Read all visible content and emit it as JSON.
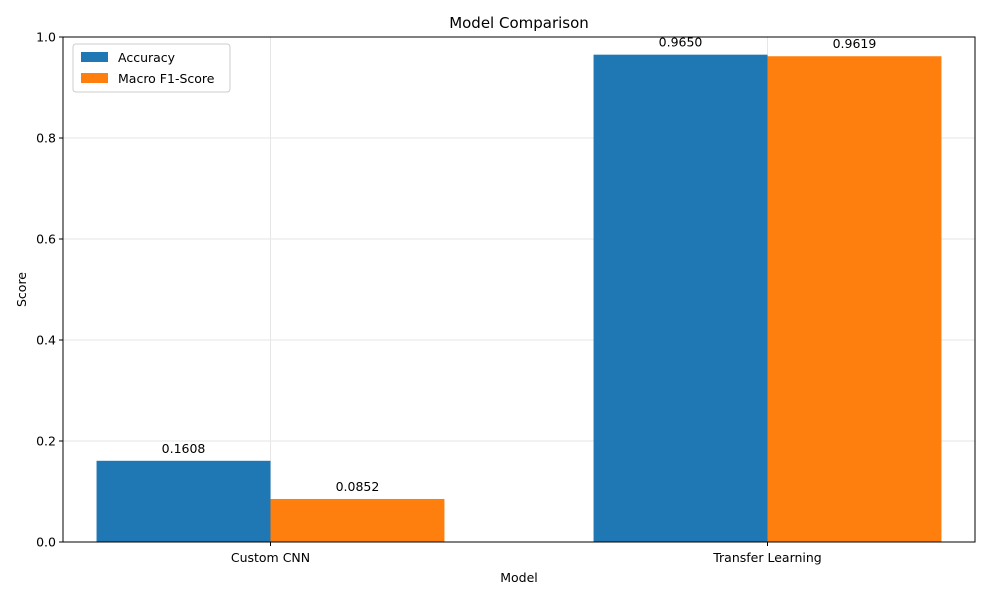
{
  "chart_data": {
    "type": "bar",
    "title": "Model Comparison",
    "xlabel": "Model",
    "ylabel": "Score",
    "categories": [
      "Custom CNN",
      "Transfer Learning"
    ],
    "series": [
      {
        "name": "Accuracy",
        "values": [
          0.1608,
          0.965
        ],
        "color": "#1f77b4"
      },
      {
        "name": "Macro F1-Score",
        "values": [
          0.0852,
          0.9619
        ],
        "color": "#ff7f0e"
      }
    ],
    "value_labels": [
      [
        "0.1608",
        "0.9650"
      ],
      [
        "0.0852",
        "0.9619"
      ]
    ],
    "ylim": [
      0,
      1.0
    ],
    "yticks": [
      0.0,
      0.2,
      0.4,
      0.6,
      0.8,
      1.0
    ],
    "ytick_labels": [
      "0.0",
      "0.2",
      "0.4",
      "0.6",
      "0.8",
      "1.0"
    ],
    "grid": true,
    "legend_position": "top-left"
  }
}
